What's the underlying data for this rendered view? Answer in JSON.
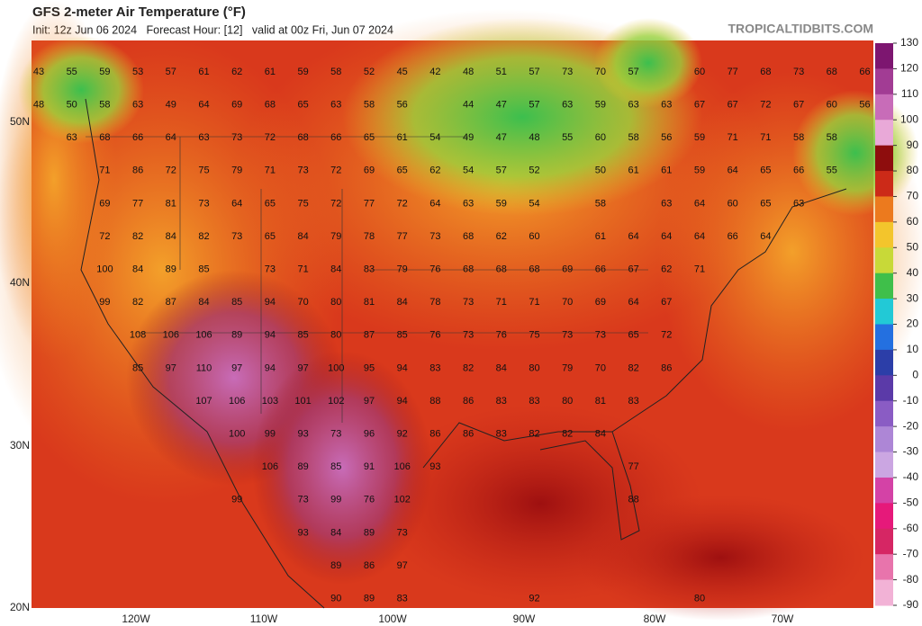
{
  "header": {
    "title": "GFS 2-meter Air Temperature (°F)",
    "subtitle": "Init: 12z Jun 06 2024   Forecast Hour: [12]   valid at 00z Fri, Jun 07 2024",
    "credit": "TROPICALTIDBITS.COM"
  },
  "axes": {
    "latitude_labels": [
      "50N",
      "40N",
      "30N",
      "20N"
    ],
    "longitude_labels": [
      "120W",
      "110W",
      "100W",
      "90W",
      "80W",
      "70W"
    ]
  },
  "colorbar": {
    "ticks": [
      130,
      120,
      110,
      100,
      90,
      80,
      70,
      60,
      50,
      40,
      30,
      20,
      10,
      0,
      -10,
      -20,
      -30,
      -40,
      -50,
      -60,
      -70,
      -80,
      -90
    ],
    "colors": [
      "#7d1670",
      "#a23c94",
      "#c86cb8",
      "#e9a9d8",
      "#8e0d0d",
      "#cc2a18",
      "#ec7a1e",
      "#f3c52c",
      "#c8d938",
      "#3fbf4a",
      "#22c9d6",
      "#2470e0",
      "#2c3ea8",
      "#5b3aa8",
      "#8a5cc4",
      "#ad86d6",
      "#cba6e2",
      "#d442a6",
      "#e6197a",
      "#d62664",
      "#e874ac",
      "#f2b2d6"
    ]
  },
  "temperature_grid": {
    "rows": [
      [
        43,
        55,
        59,
        53,
        57,
        61,
        62,
        61,
        59,
        58,
        52,
        45,
        42,
        48,
        51,
        57,
        73,
        70,
        57,
        60,
        77,
        68,
        73,
        68,
        66
      ],
      [
        48,
        50,
        58,
        63,
        49,
        64,
        69,
        68,
        65,
        63,
        58,
        56,
        44,
        47,
        57,
        63,
        59,
        63,
        63,
        67,
        67,
        72,
        67,
        60,
        56
      ],
      [
        63,
        68,
        66,
        64,
        63,
        73,
        72,
        68,
        66,
        65,
        61,
        54,
        49,
        47,
        48,
        55,
        60,
        58,
        56,
        59,
        71,
        71,
        58,
        58
      ],
      [
        71,
        86,
        72,
        75,
        79,
        71,
        73,
        72,
        69,
        65,
        62,
        54,
        57,
        52,
        50,
        61,
        61,
        59,
        64,
        65,
        66,
        55
      ],
      [
        69,
        77,
        81,
        73,
        64,
        65,
        75,
        72,
        77,
        72,
        64,
        63,
        59,
        54,
        58,
        63,
        64,
        60,
        65,
        63
      ],
      [
        72,
        82,
        84,
        82,
        73,
        65,
        84,
        79,
        78,
        77,
        73,
        68,
        62,
        60,
        61,
        64,
        64,
        64,
        66,
        64
      ],
      [
        100,
        84,
        89,
        85,
        73,
        71,
        84,
        83,
        79,
        76,
        68,
        68,
        68,
        69,
        66,
        67,
        62,
        71
      ],
      [
        99,
        82,
        87,
        84,
        85,
        94,
        70,
        80,
        81,
        84,
        78,
        73,
        71,
        71,
        70,
        69,
        64,
        67
      ],
      [
        108,
        106,
        106,
        89,
        94,
        85,
        80,
        87,
        85,
        76,
        73,
        76,
        75,
        73,
        73,
        65,
        72
      ],
      [
        85,
        97,
        110,
        97,
        94,
        97,
        100,
        95,
        94,
        83,
        82,
        84,
        80,
        79,
        70,
        82,
        86
      ],
      [
        107,
        106,
        103,
        101,
        102,
        97,
        94,
        88,
        86,
        83,
        83,
        80,
        81,
        83
      ],
      [
        100,
        99,
        93,
        73,
        96,
        92,
        86,
        86,
        83,
        82,
        82,
        84
      ],
      [
        106,
        89,
        85,
        91,
        106,
        93,
        77
      ],
      [
        99,
        73,
        99,
        76,
        102,
        88
      ],
      [
        93,
        84,
        89,
        73
      ],
      [
        89,
        86,
        97
      ],
      [
        90,
        89,
        83,
        92,
        80
      ]
    ]
  }
}
